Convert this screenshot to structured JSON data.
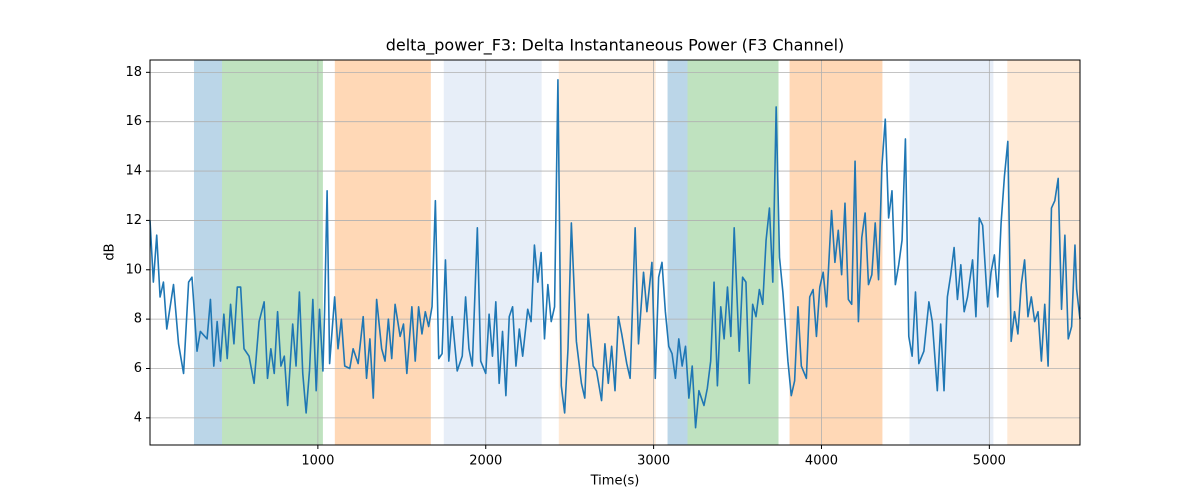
{
  "chart_data": {
    "type": "line",
    "title": "delta_power_F3: Delta Instantaneous Power (F3 Channel)",
    "x_label": "Time(s)",
    "y_label": "dB",
    "xlim": [
      0,
      5540
    ],
    "ylim": [
      2.9,
      18.5
    ],
    "xticks": [
      1000,
      2000,
      3000,
      4000,
      5000
    ],
    "yticks": [
      4,
      6,
      8,
      10,
      12,
      14,
      16,
      18
    ],
    "grid": true,
    "spans": [
      {
        "start": 262,
        "end": 429,
        "color": "#1f77b4"
      },
      {
        "start": 429,
        "end": 1030,
        "color": "#2ca02c"
      },
      {
        "start": 1101,
        "end": 1673,
        "color": "#ff7f0e"
      },
      {
        "start": 1750,
        "end": 2333,
        "color": "#aec7e8"
      },
      {
        "start": 2435,
        "end": 3012,
        "color": "#ffbb78"
      },
      {
        "start": 3083,
        "end": 3202,
        "color": "#1f77b4"
      },
      {
        "start": 3202,
        "end": 3744,
        "color": "#2ca02c"
      },
      {
        "start": 3810,
        "end": 4363,
        "color": "#ff7f0e"
      },
      {
        "start": 4524,
        "end": 5024,
        "color": "#aec7e8"
      },
      {
        "start": 5107,
        "end": 5540,
        "color": "#ffbb78"
      }
    ],
    "x": [
      0,
      20,
      40,
      60,
      80,
      100,
      140,
      170,
      200,
      230,
      250,
      280,
      300,
      340,
      360,
      380,
      400,
      420,
      440,
      460,
      480,
      500,
      520,
      540,
      560,
      590,
      620,
      650,
      680,
      700,
      720,
      740,
      760,
      780,
      800,
      820,
      850,
      870,
      890,
      910,
      930,
      950,
      970,
      990,
      1010,
      1030,
      1040,
      1055,
      1070,
      1100,
      1120,
      1140,
      1160,
      1190,
      1210,
      1240,
      1270,
      1290,
      1310,
      1330,
      1350,
      1380,
      1400,
      1420,
      1440,
      1460,
      1490,
      1510,
      1530,
      1560,
      1580,
      1600,
      1620,
      1640,
      1660,
      1680,
      1700,
      1720,
      1740,
      1760,
      1780,
      1800,
      1830,
      1860,
      1880,
      1900,
      1920,
      1950,
      1970,
      2000,
      2020,
      2040,
      2060,
      2080,
      2100,
      2120,
      2140,
      2160,
      2180,
      2200,
      2220,
      2250,
      2270,
      2290,
      2310,
      2330,
      2350,
      2370,
      2390,
      2410,
      2430,
      2450,
      2470,
      2490,
      2510,
      2540,
      2570,
      2590,
      2610,
      2640,
      2660,
      2690,
      2710,
      2730,
      2750,
      2770,
      2790,
      2810,
      2840,
      2860,
      2890,
      2910,
      2940,
      2960,
      2990,
      3010,
      3030,
      3050,
      3070,
      3090,
      3110,
      3130,
      3150,
      3170,
      3190,
      3210,
      3230,
      3250,
      3270,
      3300,
      3320,
      3340,
      3360,
      3380,
      3400,
      3420,
      3440,
      3460,
      3480,
      3510,
      3530,
      3550,
      3570,
      3590,
      3610,
      3630,
      3650,
      3670,
      3690,
      3710,
      3730,
      3750,
      3770,
      3800,
      3820,
      3840,
      3860,
      3880,
      3910,
      3930,
      3950,
      3970,
      3990,
      4010,
      4030,
      4060,
      4080,
      4100,
      4120,
      4140,
      4160,
      4180,
      4200,
      4220,
      4240,
      4260,
      4280,
      4300,
      4320,
      4340,
      4360,
      4380,
      4400,
      4420,
      4440,
      4460,
      4480,
      4500,
      4520,
      4540,
      4560,
      4580,
      4610,
      4640,
      4660,
      4690,
      4710,
      4730,
      4750,
      4770,
      4790,
      4810,
      4830,
      4850,
      4870,
      4900,
      4920,
      4940,
      4960,
      4990,
      5010,
      5030,
      5050,
      5070,
      5090,
      5110,
      5130,
      5150,
      5170,
      5190,
      5210,
      5230,
      5250,
      5270,
      5290,
      5310,
      5330,
      5350,
      5370,
      5390,
      5410,
      5430,
      5450,
      5470,
      5490,
      5510,
      5520,
      5540
    ],
    "series": [
      {
        "name": "delta_power_F3",
        "color": "#1f77b4",
        "values": [
          12,
          9.5,
          11.4,
          8.9,
          9.5,
          7.6,
          9.4,
          7,
          5.8,
          9.5,
          9.7,
          6.7,
          7.5,
          7.2,
          8.8,
          6.1,
          7.9,
          6.3,
          8.2,
          6.4,
          8.6,
          7,
          9.3,
          9.3,
          6.8,
          6.5,
          5.4,
          7.9,
          8.7,
          5.6,
          6.8,
          5.8,
          8.3,
          6.1,
          6.5,
          4.5,
          7.8,
          6.1,
          9.1,
          5.8,
          4.2,
          5.9,
          8.8,
          5.1,
          8.4,
          5.9,
          8.3,
          13.2,
          6.2,
          8.9,
          6.8,
          8,
          6.1,
          6,
          6.8,
          6.2,
          8.1,
          5.6,
          7.2,
          4.8,
          8.8,
          6.8,
          6.3,
          8,
          6.4,
          8.6,
          7.3,
          7.8,
          5.8,
          8.5,
          6.3,
          8.5,
          7.4,
          8.3,
          7.7,
          8.5,
          12.8,
          6.4,
          6.6,
          10.4,
          6.3,
          8.1,
          5.9,
          6.5,
          8.9,
          6.8,
          6.1,
          11.7,
          6.3,
          5.8,
          8.2,
          6.5,
          8.7,
          5.4,
          7.5,
          4.9,
          8.1,
          8.5,
          6.1,
          7.6,
          6.5,
          8.4,
          7.9,
          11,
          9.5,
          10.7,
          7.2,
          9.4,
          7.9,
          8.5,
          17.7,
          5.3,
          4.2,
          6.8,
          11.9,
          7.1,
          5.4,
          4.8,
          8.2,
          6.1,
          5.9,
          4.7,
          7,
          5.4,
          6.9,
          5.1,
          8.1,
          7.4,
          6.2,
          5.6,
          11.7,
          7,
          9.9,
          8.3,
          10.3,
          5.6,
          9.7,
          10.3,
          8.3,
          6.9,
          6.6,
          5.6,
          7.2,
          6.1,
          6.9,
          4.8,
          6.1,
          3.6,
          5.1,
          4.5,
          5.2,
          6.3,
          9.5,
          5.3,
          8.5,
          7.2,
          9.3,
          7.3,
          11.7,
          6.7,
          9.7,
          9.5,
          5.4,
          8.6,
          8.1,
          9.2,
          8.6,
          11.2,
          12.5,
          9.5,
          16.6,
          10.5,
          9.1,
          6.3,
          4.9,
          5.5,
          8.5,
          6.1,
          5.6,
          8.9,
          9.2,
          7.3,
          9.3,
          9.9,
          8.5,
          12.4,
          10.3,
          11.6,
          9.8,
          12.7,
          8.8,
          8.6,
          14.4,
          7.9,
          11.3,
          12.3,
          9.4,
          9.8,
          11.9,
          9.6,
          14.2,
          16.1,
          12.1,
          13.2,
          9.4,
          10.2,
          11.2,
          15.3,
          7.3,
          6.5,
          9.1,
          6.2,
          6.7,
          8.7,
          7.9,
          5.1,
          7.8,
          5.1,
          8.9,
          9.8,
          10.9,
          8.8,
          10.2,
          8.3,
          8.9,
          10.4,
          8.1,
          12.1,
          11.8,
          8.5,
          9.9,
          10.6,
          8.9,
          11.9,
          13.8,
          15.2,
          7.1,
          8.3,
          7.4,
          9.4,
          10.4,
          8.1,
          8.9,
          7.9,
          8.3,
          6.3,
          8.6,
          6.1,
          12.5,
          12.8,
          13.7,
          8.4,
          11.4,
          7.2,
          7.7,
          11,
          9.2,
          8
        ]
      }
    ]
  }
}
